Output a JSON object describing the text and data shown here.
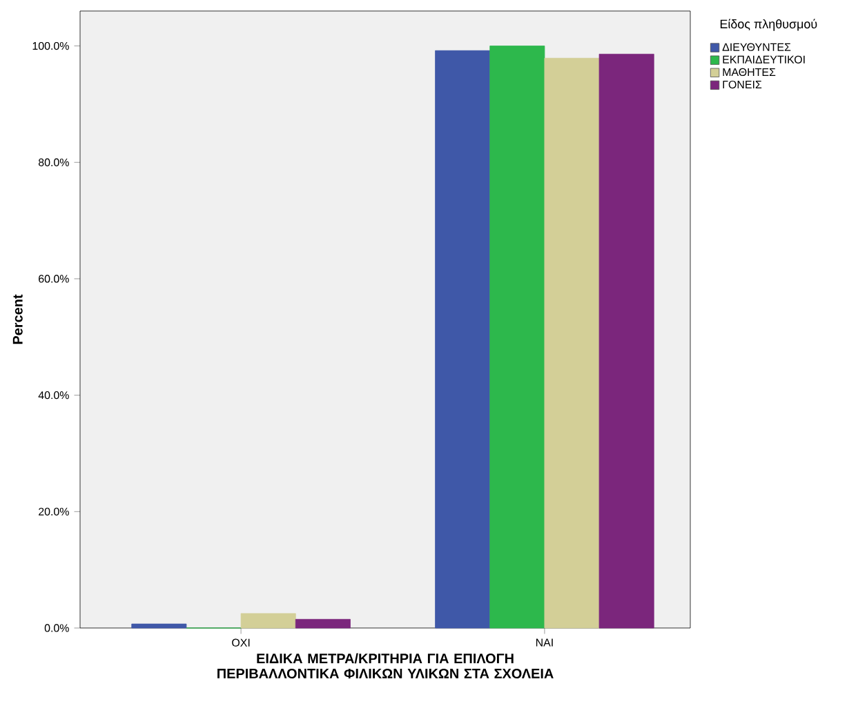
{
  "chart_data": {
    "type": "bar",
    "xlabel": "ΕΙΔΙΚΑ ΜΕΤΡΑ/ΚΡΙΤΗΡΙΑ ΓΙΑ ΕΠΙΛΟΓΗ ΠΕΡΙΒΑΛΛΟΝΤΙΚΑ ΦΙΛΙΚΩΝ ΥΛΙΚΩΝ ΣΤΑ ΣΧΟΛΕΙΑ",
    "ylabel": "Percent",
    "legend_title": "Είδος πληθυσμού",
    "categories": [
      "ΟΧΙ",
      "ΝΑΙ"
    ],
    "series": [
      {
        "name": "ΔΙΕΥΘΥΝΤΕΣ",
        "color": "#3f58a8",
        "values": [
          0.7,
          99.2
        ]
      },
      {
        "name": "ΕΚΠΑΙΔΕΥΤΙΚΟΙ",
        "color": "#2db84c",
        "values": [
          0,
          100
        ]
      },
      {
        "name": "ΜΑΘΗΤΕΣ",
        "color": "#d3cf97",
        "values": [
          2.5,
          97.9
        ]
      },
      {
        "name": "ΓΟΝΕΙΣ",
        "color": "#7b267c",
        "values": [
          1.5,
          98.6
        ]
      }
    ],
    "ylim": [
      0,
      106
    ],
    "yticks": [
      {
        "value": 0,
        "label": "0.0%"
      },
      {
        "value": 20,
        "label": "20.0%"
      },
      {
        "value": 40,
        "label": "40.0%"
      },
      {
        "value": 60,
        "label": "60.0%"
      },
      {
        "value": 80,
        "label": "80.0%"
      },
      {
        "value": 100,
        "label": "100.0%"
      }
    ],
    "grid": false,
    "legend": "right"
  }
}
